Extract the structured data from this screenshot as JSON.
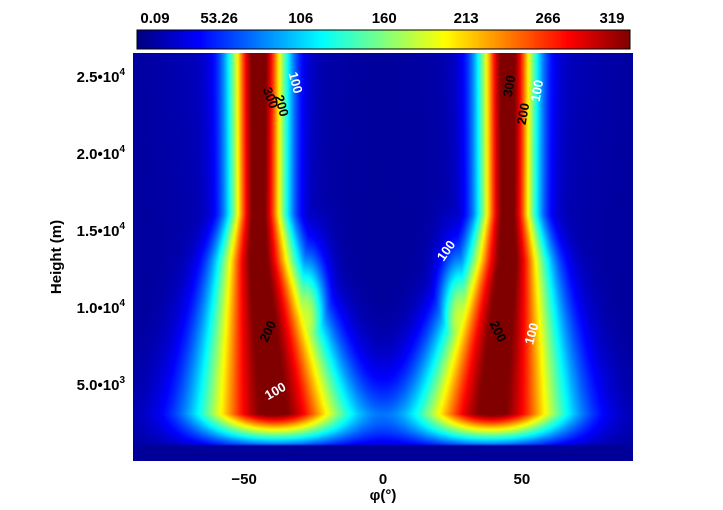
{
  "chart_data": {
    "type": "heatmap",
    "title": "",
    "xlabel": "φ(°)",
    "ylabel": "Height (m)",
    "xlim": [
      -90,
      90
    ],
    "ylim": [
      0,
      26500
    ],
    "x_ticks": [
      {
        "value": -50,
        "label": "−50"
      },
      {
        "value": 0,
        "label": "0"
      },
      {
        "value": 50,
        "label": "50"
      }
    ],
    "y_ticks": [
      {
        "value": 5000,
        "label": "5.0•",
        "exp": "3"
      },
      {
        "value": 10000,
        "label": "1.0•",
        "exp": "4"
      },
      {
        "value": 15000,
        "label": "1.5•",
        "exp": "4"
      },
      {
        "value": 20000,
        "label": "2.0•",
        "exp": "4"
      },
      {
        "value": 25000,
        "label": "2.5•",
        "exp": "4"
      }
    ],
    "colorbar": {
      "colormap": "jet",
      "range": [
        0.09,
        319
      ],
      "tick_values": [
        0.09,
        53.26,
        106,
        160,
        213,
        266,
        319
      ],
      "tick_labels": [
        "0.09",
        "53.26",
        "106",
        "160",
        "213",
        "266",
        "319"
      ]
    },
    "contour_levels": [
      100,
      200,
      300
    ],
    "contour_labels": [
      {
        "text": "300",
        "x": -42,
        "y": 23500,
        "color": "#000000",
        "rotate": 70
      },
      {
        "text": "200",
        "x": -38,
        "y": 23000,
        "color": "#000000",
        "rotate": 75
      },
      {
        "text": "100",
        "x": -33,
        "y": 24500,
        "color": "#ffffff",
        "rotate": 75
      },
      {
        "text": "200",
        "x": -40,
        "y": 8300,
        "color": "#000000",
        "rotate": -65
      },
      {
        "text": "100",
        "x": -38,
        "y": 4300,
        "color": "#ffffff",
        "rotate": -30
      },
      {
        "text": "100",
        "x": 24,
        "y": 13500,
        "color": "#ffffff",
        "rotate": -55
      },
      {
        "text": "200",
        "x": 40,
        "y": 8300,
        "color": "#000000",
        "rotate": 65
      },
      {
        "text": "100",
        "x": 55,
        "y": 8200,
        "color": "#ffffff",
        "rotate": -75
      },
      {
        "text": "300",
        "x": 47,
        "y": 24300,
        "color": "#000000",
        "rotate": -80
      },
      {
        "text": "200",
        "x": 52,
        "y": 22500,
        "color": "#000000",
        "rotate": -80
      },
      {
        "text": "100",
        "x": 57,
        "y": 24000,
        "color": "#ffffff",
        "rotate": -80
      }
    ],
    "jets": [
      {
        "side": "left",
        "upper_center_phi": -45,
        "lower_center_phi": -35,
        "peak": 319
      },
      {
        "side": "right",
        "upper_center_phi": 45,
        "lower_center_phi": 35,
        "peak": 319
      }
    ]
  }
}
